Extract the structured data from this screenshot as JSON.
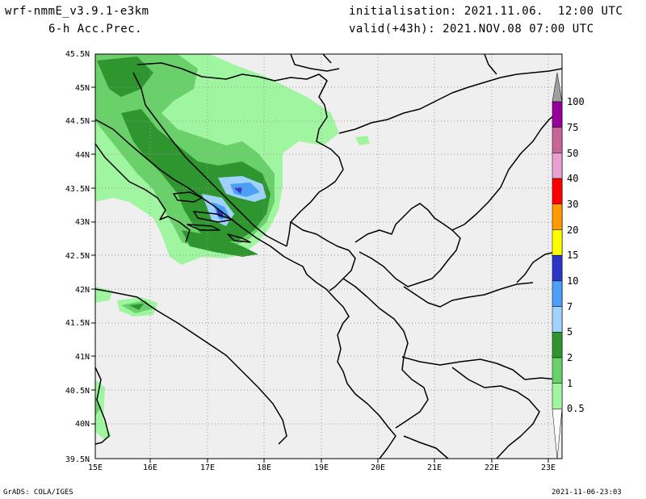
{
  "header": {
    "model": "wrf-nmmE_v3.9.1-e3km",
    "field": "6-h Acc.Prec.",
    "init": "initialisation: 2021.11.06.  12:00 UTC",
    "valid": "valid(+43h): 2021.NOV.08 07:00 UTC"
  },
  "axes": {
    "lat_labels": [
      "45.5N",
      "45N",
      "44.5N",
      "44N",
      "43.5N",
      "43N",
      "42.5N",
      "42N",
      "41.5N",
      "41N",
      "40.5N",
      "40N",
      "39.5N"
    ],
    "lon_labels": [
      "15E",
      "16E",
      "17E",
      "18E",
      "19E",
      "20E",
      "21E",
      "22E",
      "23E"
    ]
  },
  "colorbar": {
    "labels": [
      "0.5",
      "1",
      "2",
      "5",
      "7",
      "10",
      "15",
      "20",
      "30",
      "40",
      "50",
      "75",
      "100"
    ],
    "colors": [
      "#ffffff",
      "#a0f5a0",
      "#6ad06a",
      "#2f962f",
      "#a0d2ff",
      "#4ba0f5",
      "#2a36c8",
      "#ffff00",
      "#ff9a00",
      "#ff0000",
      "#e8a0d0",
      "#c86496",
      "#96009b",
      "#a0a0a0"
    ]
  },
  "footer": {
    "left": "GrADS: COLA/IGES",
    "right": "2021-11-06-23:03"
  },
  "colors": {
    "map_bg": "#efefef",
    "light_green": "#a0f5a0",
    "mid_green": "#6ad06a",
    "dark_green": "#2f962f",
    "light_blue": "#a0d2ff",
    "mid_blue": "#4ba0f5",
    "dark_blue": "#2a36c8"
  }
}
